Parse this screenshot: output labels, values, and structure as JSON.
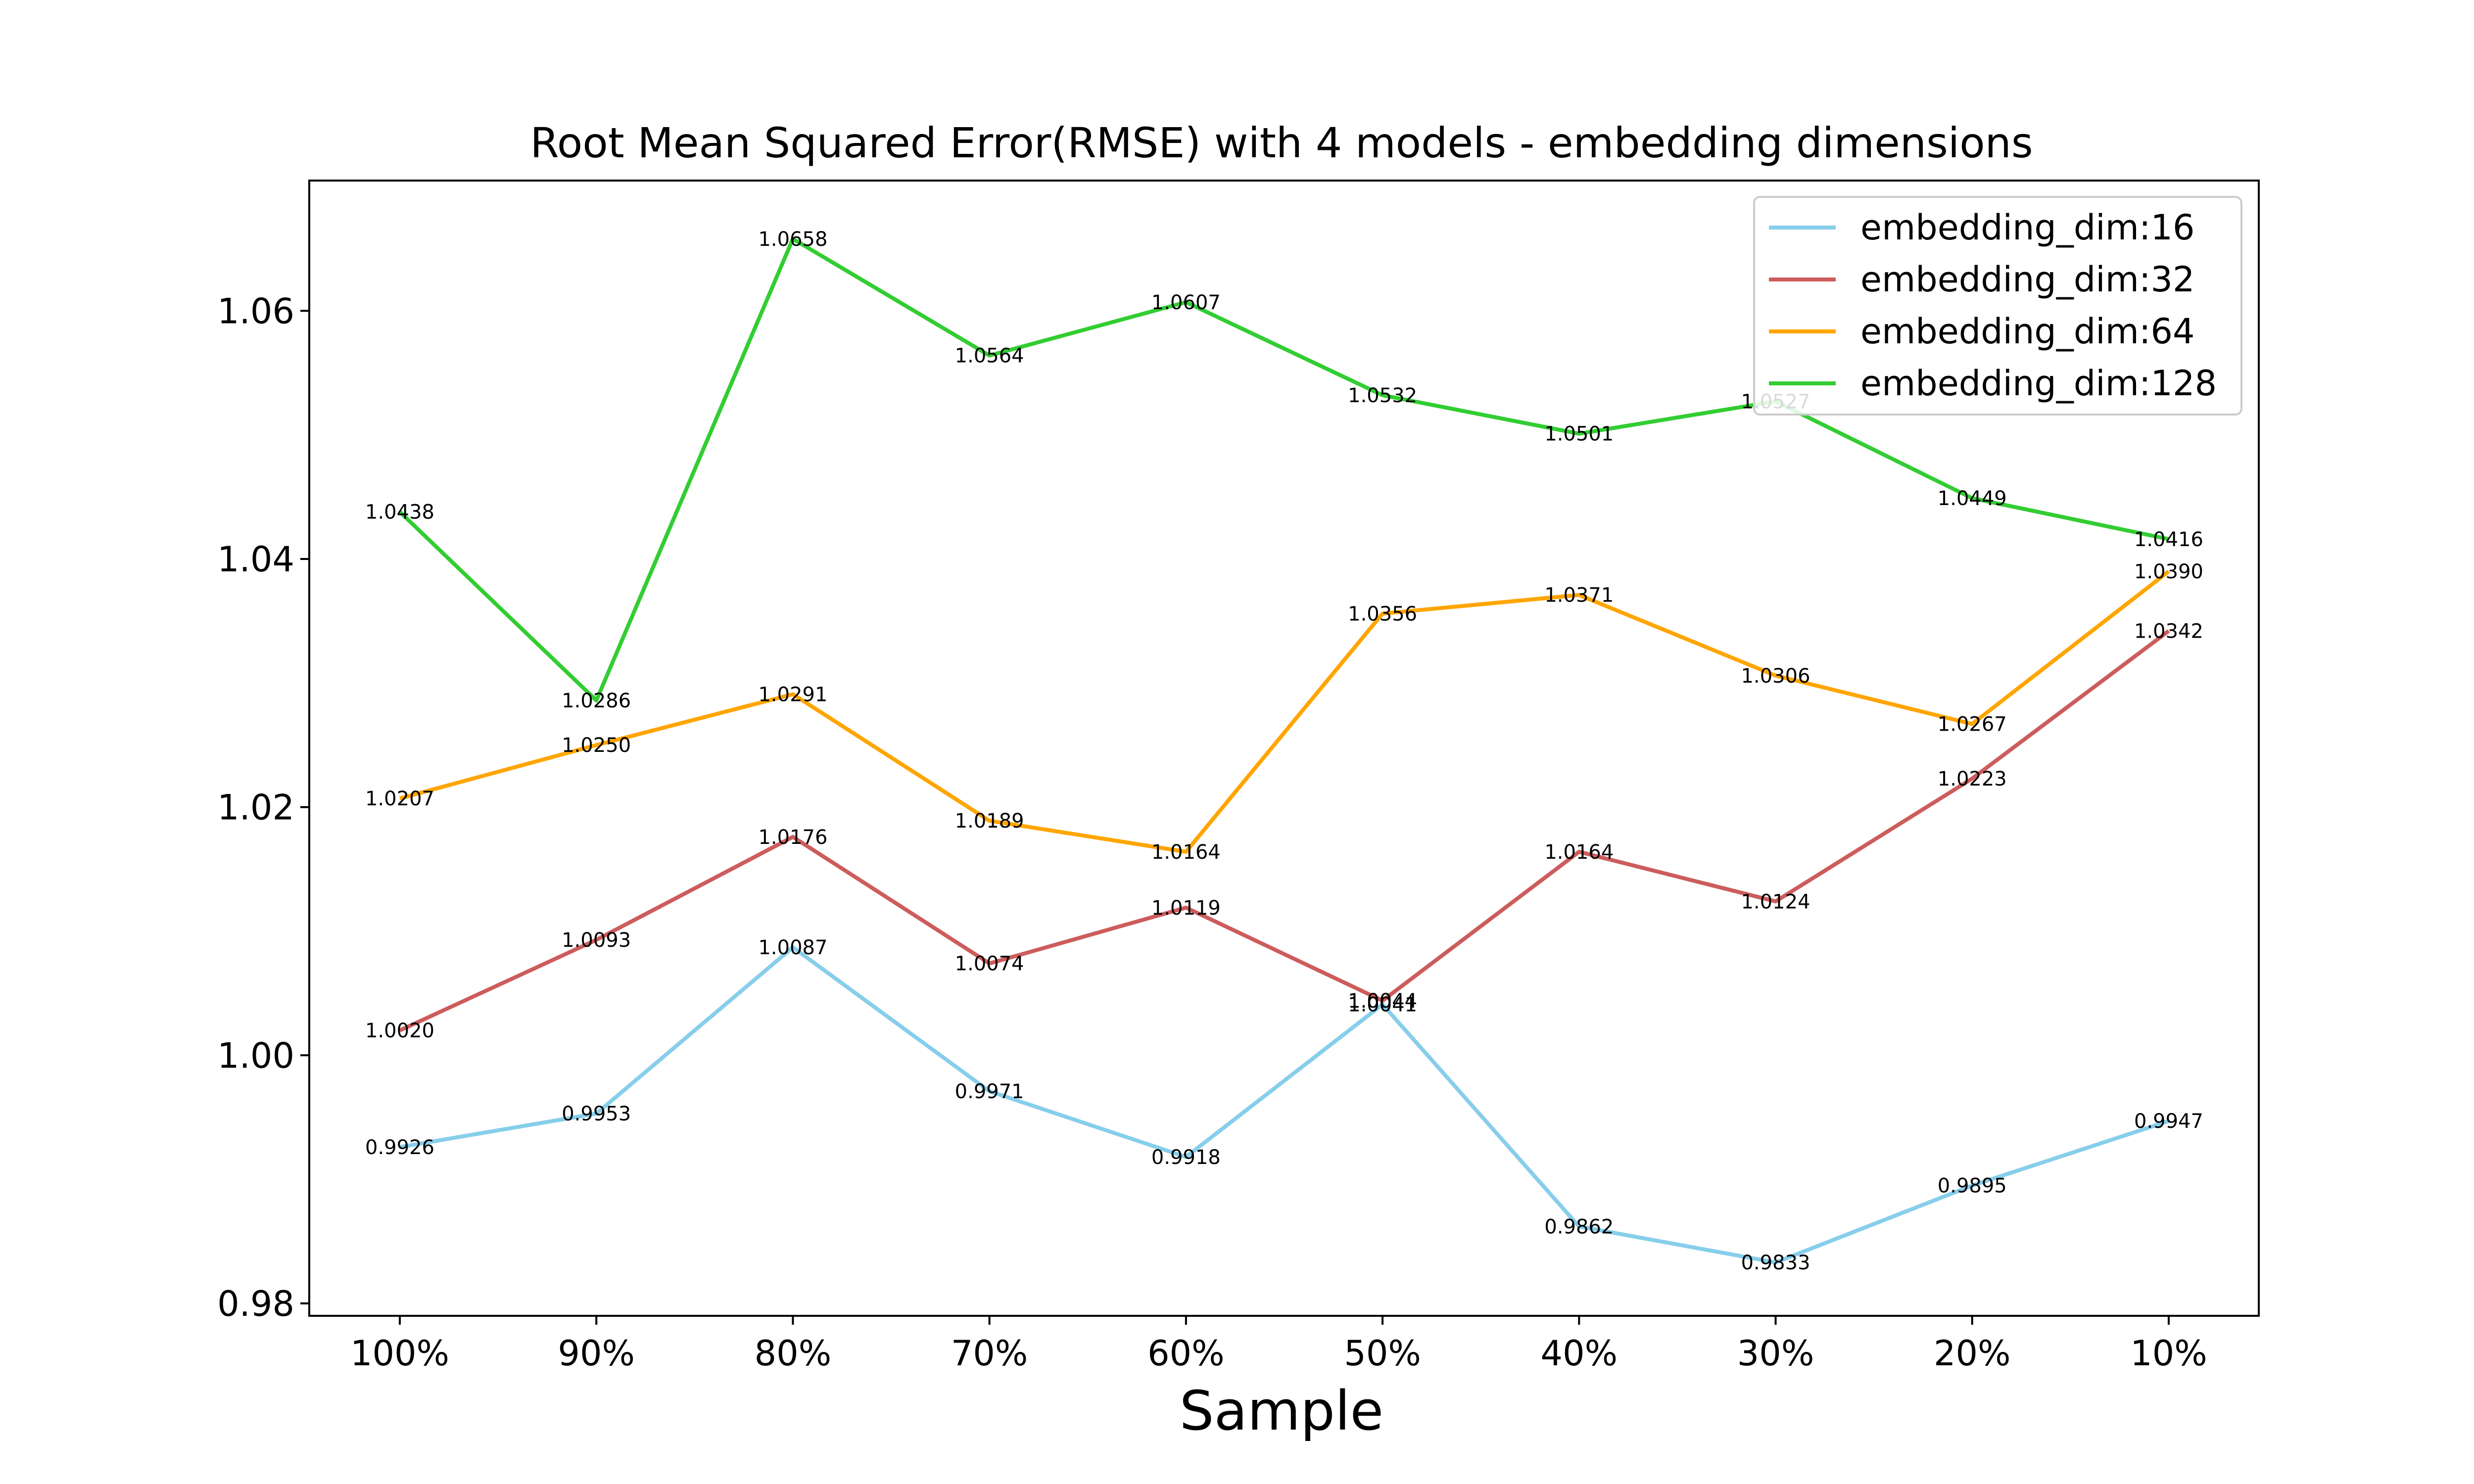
{
  "chart_data": {
    "type": "line",
    "title": "Root Mean Squared Error(RMSE) with 4 models - embedding dimensions",
    "xlabel": "Sample",
    "ylabel": "",
    "categories": [
      "100%",
      "90%",
      "80%",
      "70%",
      "60%",
      "50%",
      "40%",
      "30%",
      "20%",
      "10%"
    ],
    "ylim": [
      0.979,
      1.0705
    ],
    "yticks": [
      "0.98",
      "1.00",
      "1.02",
      "1.04",
      "1.06"
    ],
    "ytick_values": [
      0.98,
      1.0,
      1.02,
      1.04,
      1.06
    ],
    "grid": false,
    "legend_position": "top-right",
    "series": [
      {
        "name": "embedding_dim:16",
        "color": "#87CEEB",
        "values": [
          0.9926,
          0.9953,
          1.0087,
          0.9971,
          0.9918,
          1.0041,
          0.9862,
          0.9833,
          0.9895,
          0.9947
        ],
        "labels": [
          "0.9926",
          "0.9953",
          "1.0087",
          "0.9971",
          "0.9918",
          "1.0041",
          "0.9862",
          "0.9833",
          "0.9895",
          "0.9947"
        ]
      },
      {
        "name": "embedding_dim:32",
        "color": "#CD5C5C",
        "values": [
          1.002,
          1.0093,
          1.0176,
          1.0074,
          1.0119,
          1.0044,
          1.0164,
          1.0124,
          1.0223,
          1.0342
        ],
        "labels": [
          "1.0020",
          "1.0093",
          "1.0176",
          "1.0074",
          "1.0119",
          "1.0044",
          "1.0164",
          "1.0124",
          "1.0223",
          "1.0342"
        ]
      },
      {
        "name": "embedding_dim:64",
        "color": "#FFA500",
        "values": [
          1.0207,
          1.025,
          1.0291,
          1.0189,
          1.0164,
          1.0356,
          1.0371,
          1.0306,
          1.0267,
          1.039
        ],
        "labels": [
          "1.0207",
          "1.0250",
          "1.0291",
          "1.0189",
          "1.0164",
          "1.0356",
          "1.0371",
          "1.0306",
          "1.0267",
          "1.0390"
        ]
      },
      {
        "name": "embedding_dim:128",
        "color": "#32CD32",
        "values": [
          1.0438,
          1.0286,
          1.0658,
          1.0564,
          1.0607,
          1.0532,
          1.0501,
          1.0527,
          1.0449,
          1.0416
        ],
        "labels": [
          "1.0438",
          "1.0286",
          "1.0658",
          "1.0564",
          "1.0607",
          "1.0532",
          "1.0501",
          "1.0527",
          "1.0449",
          "1.0416"
        ]
      }
    ]
  }
}
